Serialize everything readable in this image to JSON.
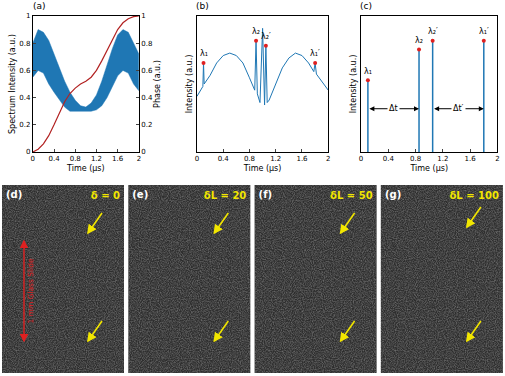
{
  "chart_data": [
    {
      "panel": "(a)",
      "type": "line",
      "x_label": "Time (μs)",
      "y_label": "Spectrum Intensity (a.u.)",
      "y2_label": "Phase (a.u.)",
      "xlim": [
        0,
        2
      ],
      "xticks": [
        0,
        0.4,
        0.8,
        1.2,
        1.6,
        2
      ],
      "ylim": [
        0,
        1
      ],
      "yticks": [
        0,
        0.2,
        0.4,
        0.6,
        0.8,
        1
      ],
      "y2lim": [
        0,
        1
      ],
      "y2ticks": [
        0,
        0.2,
        0.4,
        0.6,
        0.8,
        1
      ],
      "x": [
        0,
        0.1,
        0.2,
        0.3,
        0.4,
        0.5,
        0.6,
        0.7,
        0.8,
        0.9,
        1.0,
        1.1,
        1.2,
        1.3,
        1.4,
        1.5,
        1.6,
        1.7,
        1.8,
        1.9,
        2.0
      ],
      "series": [
        {
          "type": "band",
          "color": "#1f77b4",
          "values_low": [
            0.55,
            0.6,
            0.58,
            0.5,
            0.44,
            0.38,
            0.33,
            0.3,
            0.3,
            0.3,
            0.3,
            0.3,
            0.31,
            0.34,
            0.4,
            0.48,
            0.56,
            0.6,
            0.58,
            0.5,
            0.45
          ],
          "values_high": [
            0.8,
            0.9,
            0.88,
            0.82,
            0.72,
            0.62,
            0.52,
            0.44,
            0.38,
            0.34,
            0.33,
            0.36,
            0.42,
            0.52,
            0.64,
            0.76,
            0.86,
            0.9,
            0.88,
            0.8,
            0.72
          ]
        },
        {
          "type": "line",
          "axis": "y2",
          "color": "#b22222",
          "values": [
            0,
            0.02,
            0.06,
            0.12,
            0.2,
            0.29,
            0.37,
            0.43,
            0.47,
            0.5,
            0.52,
            0.55,
            0.6,
            0.67,
            0.75,
            0.83,
            0.9,
            0.95,
            0.98,
            0.995,
            1
          ]
        }
      ]
    },
    {
      "panel": "(b)",
      "type": "line",
      "x_label": "Time (μs)",
      "y_label": "Intensity (a.u.)",
      "xlim": [
        0,
        2
      ],
      "xticks": [
        0,
        0.4,
        0.8,
        1.2,
        1.6,
        2
      ],
      "ylim": [
        0,
        1.1
      ],
      "tick_labels": "x",
      "x": [
        0,
        0.05,
        0.09,
        0.1,
        0.11,
        0.2,
        0.3,
        0.4,
        0.5,
        0.6,
        0.7,
        0.8,
        0.88,
        0.9,
        0.92,
        0.96,
        1.0,
        1.03,
        1.05,
        1.07,
        1.1,
        1.2,
        1.3,
        1.4,
        1.5,
        1.6,
        1.7,
        1.78,
        1.8,
        1.82,
        1.9,
        2.0
      ],
      "values": [
        0.45,
        0.5,
        0.53,
        0.72,
        0.55,
        0.62,
        0.72,
        0.78,
        0.8,
        0.78,
        0.72,
        0.6,
        0.5,
        0.9,
        0.47,
        0.4,
        1.0,
        0.38,
        0.86,
        0.4,
        0.42,
        0.55,
        0.68,
        0.76,
        0.8,
        0.78,
        0.72,
        0.65,
        0.72,
        0.63,
        0.57,
        0.5
      ],
      "color": "#1f77b4",
      "points": [
        {
          "label": "λ₁",
          "x": 0.1,
          "y": 0.72
        },
        {
          "label": "λ₂",
          "x": 0.9,
          "y": 0.9
        },
        {
          "label": "λ₂′",
          "x": 1.05,
          "y": 0.86
        },
        {
          "label": "λ₁′",
          "x": 1.8,
          "y": 0.72
        }
      ],
      "points_color": "#e02020"
    },
    {
      "panel": "(c)",
      "type": "stem",
      "x_label": "Time (μs)",
      "y_label": "Intensity (a.u.)",
      "xlim": [
        0,
        2
      ],
      "xticks": [
        0,
        0.4,
        0.8,
        1.2,
        1.6,
        2
      ],
      "ylim": [
        0,
        1.1
      ],
      "tick_labels": "x",
      "x": [
        0.1,
        0.85,
        1.05,
        1.8
      ],
      "values": [
        0.58,
        0.83,
        0.9,
        0.9
      ],
      "labels": [
        "λ₁",
        "λ₂",
        "λ₂′",
        "λ₁′"
      ],
      "color": "#1f77b4",
      "points_color": "#e02020",
      "intervals": [
        {
          "label": "Δt",
          "from": 0.1,
          "to": 0.85,
          "y": 0.35
        },
        {
          "label": "Δt′",
          "from": 1.05,
          "to": 1.8,
          "y": 0.35
        }
      ]
    }
  ],
  "images": [
    {
      "panel": "(d)",
      "label": "δ = 0"
    },
    {
      "panel": "(e)",
      "label": "δL = 20"
    },
    {
      "panel": "(f)",
      "label": "δL = 50"
    },
    {
      "panel": "(g)",
      "label": "δL = 100"
    }
  ],
  "scale_label": "1 mm Glass Slide"
}
